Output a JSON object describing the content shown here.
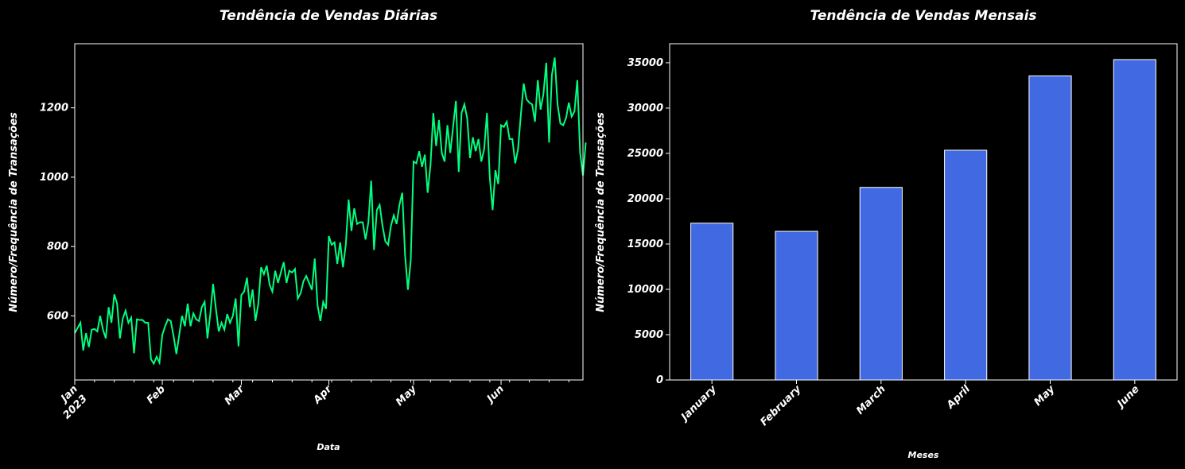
{
  "chart_data": [
    {
      "type": "line",
      "title": "Tendência de Vendas Diárias",
      "xlabel": "Data",
      "ylabel": "Número/Frequência de Transações",
      "line_color": "#00ff7f",
      "xlim": [
        "2023-01-01",
        "2023-06-30"
      ],
      "ylim": [
        415,
        1385
      ],
      "y_ticks": [
        600,
        800,
        1000,
        1200
      ],
      "x_ticks": [
        {
          "date": "2023-01-01",
          "label": "Jan",
          "sublabel": "2023"
        },
        {
          "date": "2023-02-01",
          "label": "Feb",
          "sublabel": ""
        },
        {
          "date": "2023-03-01",
          "label": "Mar",
          "sublabel": ""
        },
        {
          "date": "2023-04-01",
          "label": "Apr",
          "sublabel": ""
        },
        {
          "date": "2023-05-01",
          "label": "May",
          "sublabel": ""
        },
        {
          "date": "2023-06-01",
          "label": "Jun",
          "sublabel": ""
        }
      ],
      "series": [
        {
          "start_date": "2023-01-01",
          "freq": "daily",
          "values": [
            550,
            565,
            580,
            500,
            550,
            510,
            560,
            562,
            555,
            600,
            560,
            535,
            625,
            580,
            662,
            635,
            535,
            592,
            615,
            580,
            595,
            492,
            590,
            588,
            588,
            580,
            580,
            475,
            462,
            482,
            465,
            545,
            570,
            590,
            585,
            542,
            490,
            545,
            600,
            570,
            635,
            570,
            607,
            590,
            585,
            625,
            640,
            535,
            605,
            692,
            620,
            555,
            580,
            560,
            605,
            580,
            600,
            650,
            512,
            660,
            670,
            710,
            625,
            676,
            585,
            634,
            740,
            720,
            745,
            690,
            670,
            730,
            695,
            725,
            755,
            695,
            730,
            725,
            735,
            650,
            665,
            700,
            715,
            695,
            675,
            765,
            630,
            585,
            640,
            620,
            830,
            805,
            812,
            750,
            812,
            740,
            805,
            935,
            845,
            910,
            865,
            870,
            870,
            820,
            870,
            990,
            790,
            905,
            920,
            860,
            815,
            805,
            860,
            890,
            865,
            920,
            955,
            775,
            675,
            760,
            1045,
            1040,
            1075,
            1030,
            1065,
            955,
            1035,
            1185,
            1090,
            1165,
            1070,
            1045,
            1150,
            1070,
            1145,
            1220,
            1015,
            1185,
            1210,
            1170,
            1055,
            1115,
            1075,
            1110,
            1045,
            1080,
            1185,
            1000,
            905,
            1020,
            980,
            1150,
            1145,
            1160,
            1110,
            1110,
            1040,
            1080,
            1180,
            1270,
            1225,
            1215,
            1210,
            1160,
            1280,
            1195,
            1240,
            1330,
            1100,
            1295,
            1345,
            1210,
            1155,
            1150,
            1170,
            1215,
            1175,
            1190,
            1280,
            1070,
            1005,
            1100
          ]
        }
      ]
    },
    {
      "type": "bar",
      "title": "Tendência de Vendas Mensais",
      "xlabel": "Meses",
      "ylabel": "Número/Frequência de Transações",
      "bar_color": "#4169e1",
      "edge_color": "#ffffff",
      "categories": [
        "January",
        "February",
        "March",
        "April",
        "May",
        "June"
      ],
      "values": [
        17300,
        16400,
        21250,
        25350,
        33550,
        35350
      ],
      "ylim": [
        0,
        37100
      ],
      "y_ticks": [
        0,
        5000,
        10000,
        15000,
        20000,
        25000,
        30000,
        35000
      ]
    }
  ]
}
